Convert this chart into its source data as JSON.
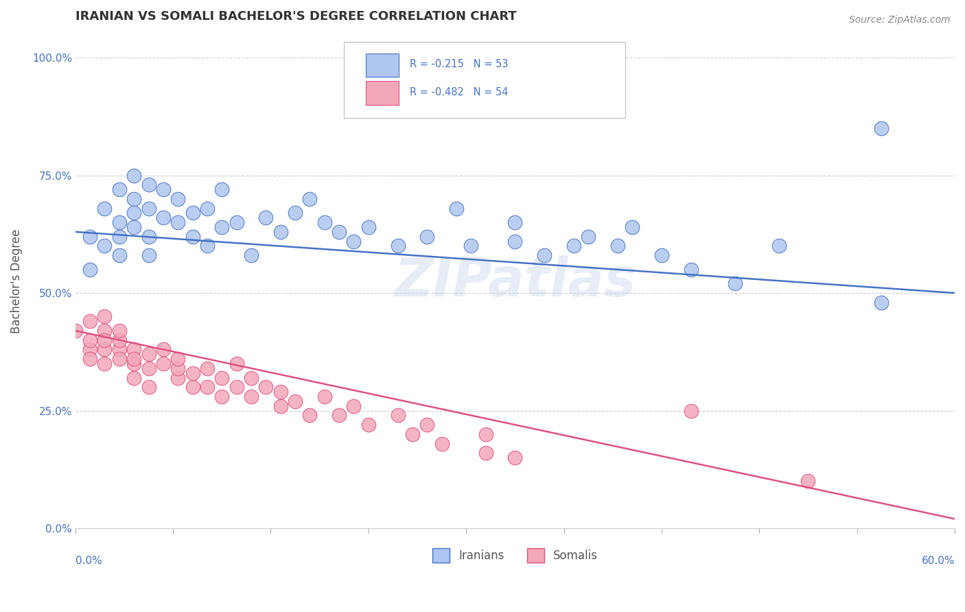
{
  "title": "IRANIAN VS SOMALI BACHELOR'S DEGREE CORRELATION CHART",
  "source": "Source: ZipAtlas.com",
  "ylabel": "Bachelor's Degree",
  "xlim": [
    0.0,
    0.6
  ],
  "ylim": [
    0.0,
    1.05
  ],
  "ytick_vals": [
    0.0,
    0.25,
    0.5,
    0.75,
    1.0
  ],
  "watermark": "ZIPatlas",
  "iranian_color": "#aec6f0",
  "somali_color": "#f4a7b9",
  "iranian_line_color": "#4472c4",
  "somali_line_color": "#e05080",
  "iranian_line": [
    0.63,
    0.5
  ],
  "somali_line": [
    0.42,
    0.02
  ],
  "legend_r1": "R = -0.215   N = 53",
  "legend_r2": "R = -0.482   N = 54",
  "iranian_scatter": [
    [
      0.01,
      0.62
    ],
    [
      0.01,
      0.55
    ],
    [
      0.02,
      0.68
    ],
    [
      0.02,
      0.6
    ],
    [
      0.03,
      0.72
    ],
    [
      0.03,
      0.65
    ],
    [
      0.03,
      0.58
    ],
    [
      0.03,
      0.62
    ],
    [
      0.04,
      0.7
    ],
    [
      0.04,
      0.67
    ],
    [
      0.04,
      0.64
    ],
    [
      0.04,
      0.75
    ],
    [
      0.05,
      0.68
    ],
    [
      0.05,
      0.62
    ],
    [
      0.05,
      0.73
    ],
    [
      0.05,
      0.58
    ],
    [
      0.06,
      0.66
    ],
    [
      0.06,
      0.72
    ],
    [
      0.07,
      0.65
    ],
    [
      0.07,
      0.7
    ],
    [
      0.08,
      0.67
    ],
    [
      0.08,
      0.62
    ],
    [
      0.09,
      0.68
    ],
    [
      0.09,
      0.6
    ],
    [
      0.1,
      0.64
    ],
    [
      0.1,
      0.72
    ],
    [
      0.11,
      0.65
    ],
    [
      0.12,
      0.58
    ],
    [
      0.13,
      0.66
    ],
    [
      0.14,
      0.63
    ],
    [
      0.15,
      0.67
    ],
    [
      0.16,
      0.7
    ],
    [
      0.17,
      0.65
    ],
    [
      0.18,
      0.63
    ],
    [
      0.19,
      0.61
    ],
    [
      0.2,
      0.64
    ],
    [
      0.22,
      0.6
    ],
    [
      0.24,
      0.62
    ],
    [
      0.26,
      0.68
    ],
    [
      0.27,
      0.6
    ],
    [
      0.3,
      0.61
    ],
    [
      0.3,
      0.65
    ],
    [
      0.32,
      0.58
    ],
    [
      0.34,
      0.6
    ],
    [
      0.35,
      0.62
    ],
    [
      0.37,
      0.6
    ],
    [
      0.38,
      0.64
    ],
    [
      0.4,
      0.58
    ],
    [
      0.42,
      0.55
    ],
    [
      0.45,
      0.52
    ],
    [
      0.48,
      0.6
    ],
    [
      0.55,
      0.85
    ],
    [
      0.55,
      0.48
    ]
  ],
  "somali_scatter": [
    [
      0.0,
      0.42
    ],
    [
      0.01,
      0.38
    ],
    [
      0.01,
      0.44
    ],
    [
      0.01,
      0.4
    ],
    [
      0.01,
      0.36
    ],
    [
      0.02,
      0.42
    ],
    [
      0.02,
      0.38
    ],
    [
      0.02,
      0.45
    ],
    [
      0.02,
      0.4
    ],
    [
      0.02,
      0.35
    ],
    [
      0.03,
      0.38
    ],
    [
      0.03,
      0.36
    ],
    [
      0.03,
      0.4
    ],
    [
      0.03,
      0.42
    ],
    [
      0.04,
      0.35
    ],
    [
      0.04,
      0.38
    ],
    [
      0.04,
      0.36
    ],
    [
      0.04,
      0.32
    ],
    [
      0.05,
      0.34
    ],
    [
      0.05,
      0.37
    ],
    [
      0.05,
      0.3
    ],
    [
      0.06,
      0.35
    ],
    [
      0.06,
      0.38
    ],
    [
      0.07,
      0.32
    ],
    [
      0.07,
      0.34
    ],
    [
      0.07,
      0.36
    ],
    [
      0.08,
      0.3
    ],
    [
      0.08,
      0.33
    ],
    [
      0.09,
      0.34
    ],
    [
      0.09,
      0.3
    ],
    [
      0.1,
      0.28
    ],
    [
      0.1,
      0.32
    ],
    [
      0.11,
      0.35
    ],
    [
      0.11,
      0.3
    ],
    [
      0.12,
      0.28
    ],
    [
      0.12,
      0.32
    ],
    [
      0.13,
      0.3
    ],
    [
      0.14,
      0.26
    ],
    [
      0.14,
      0.29
    ],
    [
      0.15,
      0.27
    ],
    [
      0.16,
      0.24
    ],
    [
      0.17,
      0.28
    ],
    [
      0.18,
      0.24
    ],
    [
      0.19,
      0.26
    ],
    [
      0.2,
      0.22
    ],
    [
      0.22,
      0.24
    ],
    [
      0.23,
      0.2
    ],
    [
      0.24,
      0.22
    ],
    [
      0.25,
      0.18
    ],
    [
      0.28,
      0.2
    ],
    [
      0.28,
      0.16
    ],
    [
      0.3,
      0.15
    ],
    [
      0.42,
      0.25
    ],
    [
      0.5,
      0.1
    ]
  ]
}
